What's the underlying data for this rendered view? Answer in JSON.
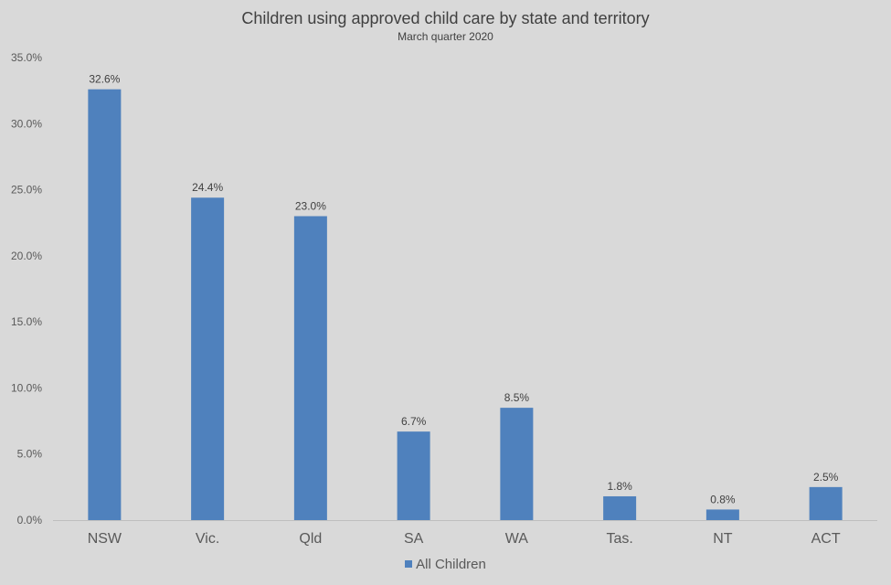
{
  "colors": {
    "bar": "#4f81bd",
    "background": "#d9d9d9",
    "axis": "#bfbfbf"
  },
  "chart_data": {
    "type": "bar",
    "title": "Children using approved child care by state and territory",
    "subtitle": "March quarter 2020",
    "categories": [
      "NSW",
      "Vic.",
      "Qld",
      "SA",
      "WA",
      "Tas.",
      "NT",
      "ACT"
    ],
    "series": [
      {
        "name": "All Children",
        "values": [
          32.6,
          24.4,
          23.0,
          6.7,
          8.5,
          1.8,
          0.8,
          2.5
        ],
        "labels": [
          "32.6%",
          "24.4%",
          "23.0%",
          "6.7%",
          "8.5%",
          "1.8%",
          "0.8%",
          "2.5%"
        ]
      }
    ],
    "ylim": [
      0,
      35
    ],
    "yticks": [
      0,
      5,
      10,
      15,
      20,
      25,
      30,
      35
    ],
    "ytick_labels": [
      "0.0%",
      "5.0%",
      "10.0%",
      "15.0%",
      "20.0%",
      "25.0%",
      "30.0%",
      "35.0%"
    ],
    "grid": false,
    "legend": "bottom"
  }
}
